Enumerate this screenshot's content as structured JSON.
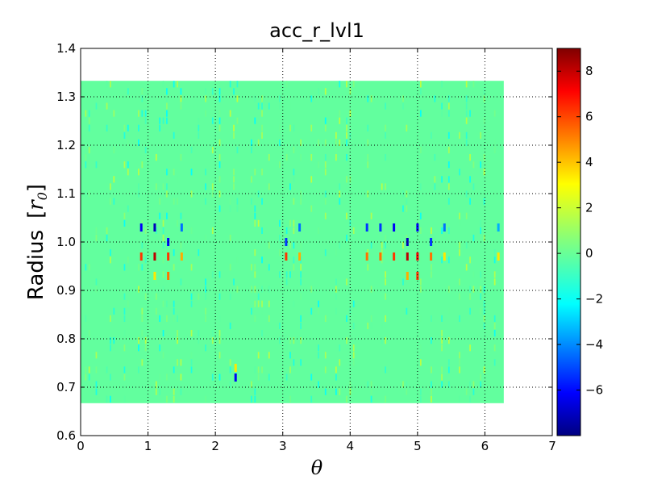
{
  "chart_data": {
    "type": "heatmap",
    "title": "acc_r_lvl1",
    "xlabel": "θ",
    "ylabel": "Radius  [r0]",
    "ylabel_text": "Radius",
    "ylabel_unit_open": "[",
    "ylabel_unit_var": "r",
    "ylabel_unit_sub": "0",
    "ylabel_unit_close": "]",
    "xlim": [
      0,
      7
    ],
    "ylim": [
      0.6,
      1.4
    ],
    "grid": true,
    "colormap": "jet",
    "colorbar": {
      "vmin": -8,
      "vmax": 9,
      "ticks": [
        -6,
        -4,
        -2,
        0,
        2,
        4,
        6,
        8
      ],
      "tick_labels": [
        "−6",
        "−4",
        "−2",
        "0",
        "2",
        "4",
        "6",
        "8"
      ]
    },
    "xticks": [
      0,
      1,
      2,
      3,
      4,
      5,
      6,
      7
    ],
    "xtick_labels": [
      "0",
      "1",
      "2",
      "3",
      "4",
      "5",
      "6",
      "7"
    ],
    "yticks": [
      0.6,
      0.7,
      0.8,
      0.9,
      1.0,
      1.1,
      1.2,
      1.3,
      1.4
    ],
    "ytick_labels": [
      "0.6",
      "0.7",
      "0.8",
      "0.9",
      "1.0",
      "1.1",
      "1.2",
      "1.3",
      "1.4"
    ],
    "data_extent": {
      "theta": [
        0,
        6.28
      ],
      "radius": [
        0.667,
        1.333
      ]
    },
    "background_value": 0,
    "features": [
      {
        "theta": 0.9,
        "r": 1.03,
        "value": -6
      },
      {
        "theta": 0.9,
        "r": 0.97,
        "value": 6
      },
      {
        "theta": 1.1,
        "r": 1.03,
        "value": -7
      },
      {
        "theta": 1.1,
        "r": 0.97,
        "value": 8
      },
      {
        "theta": 1.1,
        "r": 0.93,
        "value": 3
      },
      {
        "theta": 1.3,
        "r": 1.0,
        "value": -6
      },
      {
        "theta": 1.3,
        "r": 0.97,
        "value": 6
      },
      {
        "theta": 1.3,
        "r": 0.93,
        "value": 5
      },
      {
        "theta": 1.5,
        "r": 1.03,
        "value": -4
      },
      {
        "theta": 1.5,
        "r": 0.97,
        "value": 4
      },
      {
        "theta": 2.3,
        "r": 0.72,
        "value": -6
      },
      {
        "theta": 2.3,
        "r": 0.74,
        "value": 3
      },
      {
        "theta": 3.05,
        "r": 1.0,
        "value": -5
      },
      {
        "theta": 3.05,
        "r": 0.97,
        "value": 6
      },
      {
        "theta": 3.25,
        "r": 1.03,
        "value": -4
      },
      {
        "theta": 3.25,
        "r": 0.97,
        "value": 4
      },
      {
        "theta": 4.25,
        "r": 1.03,
        "value": -5
      },
      {
        "theta": 4.25,
        "r": 0.97,
        "value": 5
      },
      {
        "theta": 4.45,
        "r": 1.03,
        "value": -5
      },
      {
        "theta": 4.45,
        "r": 0.97,
        "value": 5
      },
      {
        "theta": 4.65,
        "r": 1.03,
        "value": -6
      },
      {
        "theta": 4.65,
        "r": 0.97,
        "value": 6
      },
      {
        "theta": 4.85,
        "r": 1.0,
        "value": -7
      },
      {
        "theta": 4.85,
        "r": 0.97,
        "value": 8
      },
      {
        "theta": 4.85,
        "r": 0.93,
        "value": 4
      },
      {
        "theta": 5.0,
        "r": 1.03,
        "value": -6
      },
      {
        "theta": 5.0,
        "r": 0.97,
        "value": 7
      },
      {
        "theta": 5.0,
        "r": 0.93,
        "value": 6
      },
      {
        "theta": 5.2,
        "r": 1.0,
        "value": -5
      },
      {
        "theta": 5.2,
        "r": 0.97,
        "value": 5
      },
      {
        "theta": 5.4,
        "r": 1.03,
        "value": -4
      },
      {
        "theta": 5.4,
        "r": 0.97,
        "value": 3
      },
      {
        "theta": 6.2,
        "r": 1.03,
        "value": -3
      },
      {
        "theta": 6.2,
        "r": 0.97,
        "value": 3
      }
    ]
  }
}
